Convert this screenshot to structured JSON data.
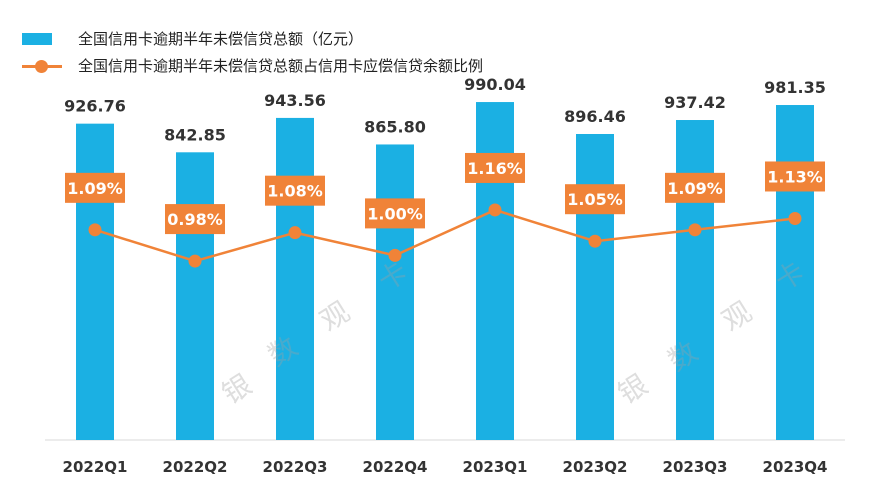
{
  "legend": {
    "bar_label": "全国信用卡逾期半年未偿信贷总额（亿元）",
    "line_label": "全国信用卡逾期半年未偿信贷总额占信用卡应偿信贷余额比例"
  },
  "watermark": {
    "chars": [
      "银",
      "数",
      "观",
      "卡"
    ]
  },
  "colors": {
    "bar": "#1BB0E3",
    "line": "#F08338",
    "label_bg": "#F08338"
  },
  "chart_data": {
    "type": "bar",
    "title": "",
    "xlabel": "",
    "ylabel": "",
    "categories": [
      "2022Q1",
      "2022Q2",
      "2022Q3",
      "2022Q4",
      "2023Q1",
      "2023Q2",
      "2023Q3",
      "2023Q4"
    ],
    "series": [
      {
        "name": "全国信用卡逾期半年未偿信贷总额（亿元）",
        "type": "bar",
        "values": [
          926.76,
          842.85,
          943.56,
          865.8,
          990.04,
          896.46,
          937.42,
          981.35
        ],
        "labels": [
          "926.76",
          "842.85",
          "943.56",
          "865.80",
          "990.04",
          "896.46",
          "937.42",
          "981.35"
        ]
      },
      {
        "name": "全国信用卡逾期半年未偿信贷总额占信用卡应偿信贷余额比例",
        "type": "line",
        "values": [
          1.09,
          0.98,
          1.08,
          1.0,
          1.16,
          1.05,
          1.09,
          1.13
        ],
        "labels": [
          "1.09%",
          "0.98%",
          "1.08%",
          "1.00%",
          "1.16%",
          "1.05%",
          "1.09%",
          "1.13%"
        ]
      }
    ],
    "ylim": [
      0,
      1040
    ],
    "y2lim": [
      0.35,
      1.6
    ],
    "grid": false,
    "legend_position": "top-left"
  }
}
